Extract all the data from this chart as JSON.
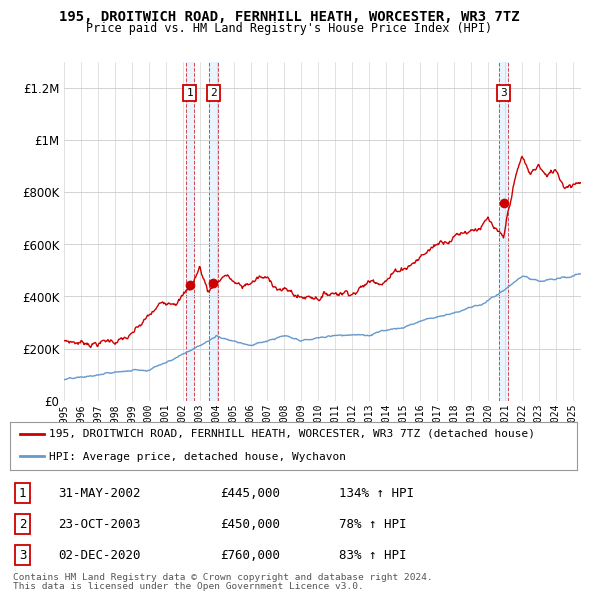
{
  "title": "195, DROITWICH ROAD, FERNHILL HEATH, WORCESTER, WR3 7TZ",
  "subtitle": "Price paid vs. HM Land Registry's House Price Index (HPI)",
  "legend_label_red": "195, DROITWICH ROAD, FERNHILL HEATH, WORCESTER, WR3 7TZ (detached house)",
  "legend_label_blue": "HPI: Average price, detached house, Wychavon",
  "transactions": [
    {
      "num": 1,
      "date": "31-MAY-2002",
      "price": 445000,
      "pct": "134%",
      "dir": "↑"
    },
    {
      "num": 2,
      "date": "23-OCT-2003",
      "price": 450000,
      "pct": "78%",
      "dir": "↑"
    },
    {
      "num": 3,
      "date": "02-DEC-2020",
      "price": 760000,
      "pct": "83%",
      "dir": "↑"
    }
  ],
  "footer": [
    "Contains HM Land Registry data © Crown copyright and database right 2024.",
    "This data is licensed under the Open Government Licence v3.0."
  ],
  "ylim": [
    0,
    1300000
  ],
  "yticks": [
    0,
    200000,
    400000,
    600000,
    800000,
    1000000,
    1200000
  ],
  "transaction_years": [
    2002.42,
    2003.81,
    2020.92
  ],
  "red_color": "#cc0000",
  "blue_color": "#6699cc",
  "shading_color": "#ddeeff",
  "background_color": "#ffffff"
}
